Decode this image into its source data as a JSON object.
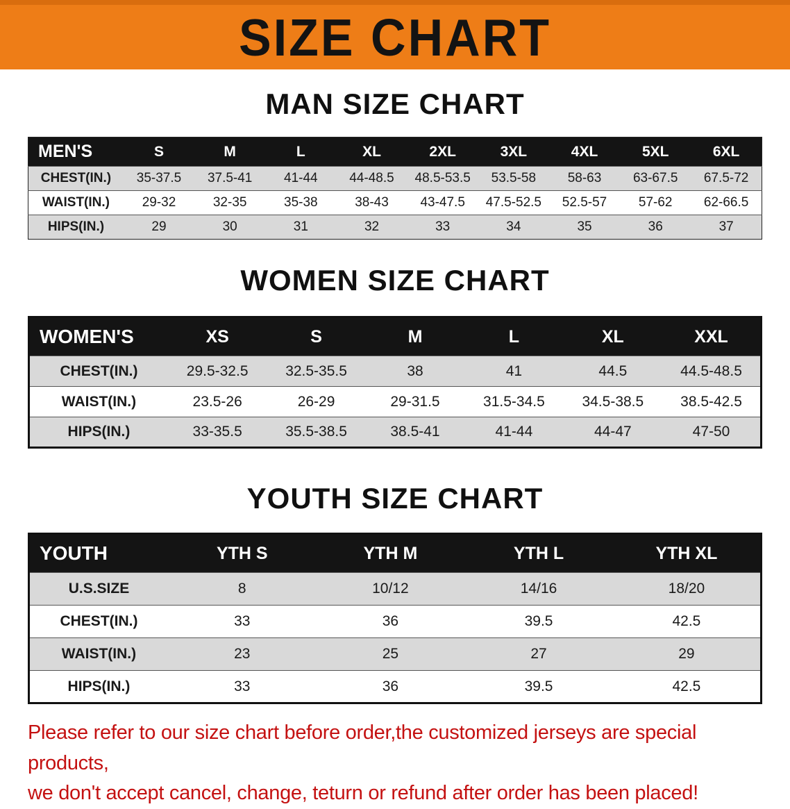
{
  "banner": {
    "title": "SIZE CHART",
    "bg_color": "#ee7d17",
    "text_color": "#131313"
  },
  "sections": [
    {
      "heading": "MAN SIZE CHART",
      "table": {
        "header": [
          "MEN'S",
          "S",
          "M",
          "L",
          "XL",
          "2XL",
          "3XL",
          "4XL",
          "5XL",
          "6XL"
        ],
        "rows": [
          [
            "CHEST(IN.)",
            "35-37.5",
            "37.5-41",
            "41-44",
            "44-48.5",
            "48.5-53.5",
            "53.5-58",
            "58-63",
            "63-67.5",
            "67.5-72"
          ],
          [
            "WAIST(IN.)",
            "29-32",
            "32-35",
            "35-38",
            "38-43",
            "43-47.5",
            "47.5-52.5",
            "52.5-57",
            "57-62",
            "62-66.5"
          ],
          [
            "HIPS(IN.)",
            "29",
            "30",
            "31",
            "32",
            "33",
            "34",
            "35",
            "36",
            "37"
          ]
        ]
      }
    },
    {
      "heading": "WOMEN SIZE CHART",
      "table": {
        "header": [
          "WOMEN'S",
          "XS",
          "S",
          "M",
          "L",
          "XL",
          "XXL"
        ],
        "rows": [
          [
            "CHEST(IN.)",
            "29.5-32.5",
            "32.5-35.5",
            "38",
            "41",
            "44.5",
            "44.5-48.5"
          ],
          [
            "WAIST(IN.)",
            "23.5-26",
            "26-29",
            "29-31.5",
            "31.5-34.5",
            "34.5-38.5",
            "38.5-42.5"
          ],
          [
            "HIPS(IN.)",
            "33-35.5",
            "35.5-38.5",
            "38.5-41",
            "41-44",
            "44-47",
            "47-50"
          ]
        ]
      }
    },
    {
      "heading": "YOUTH SIZE CHART",
      "table": {
        "header": [
          "YOUTH",
          "YTH S",
          "YTH M",
          "YTH L",
          "YTH XL"
        ],
        "rows": [
          [
            "U.S.SIZE",
            "8",
            "10/12",
            "14/16",
            "18/20"
          ],
          [
            "CHEST(IN.)",
            "33",
            "36",
            "39.5",
            "42.5"
          ],
          [
            "WAIST(IN.)",
            "23",
            "25",
            "27",
            "29"
          ],
          [
            "HIPS(IN.)",
            "33",
            "36",
            "39.5",
            "42.5"
          ]
        ]
      }
    }
  ],
  "disclaimer": {
    "lines": [
      "Please refer to our size chart before order,the customized jerseys are special products,",
      "we don't accept cancel, change, teturn or refund after order has been placed!"
    ],
    "color": "#c41111"
  }
}
